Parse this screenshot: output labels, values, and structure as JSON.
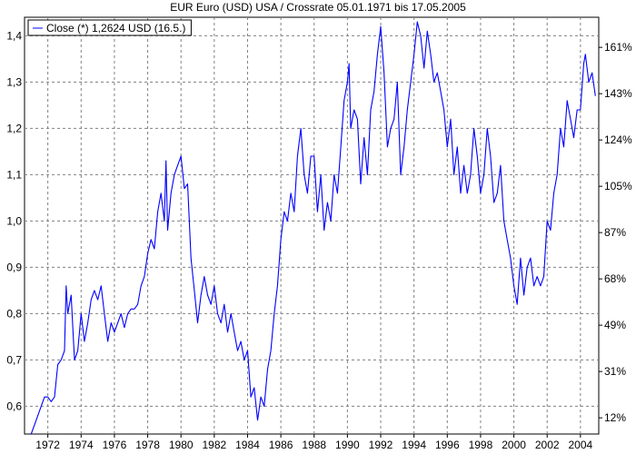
{
  "chart_data": {
    "type": "line",
    "title": "EUR Euro (USD) USA / Crossrate 05.01.1971 bis 17.05.2005",
    "xlabel": "",
    "ylabel": "",
    "xlim": [
      1970.6,
      2005.1
    ],
    "ylim": [
      0.54,
      1.44
    ],
    "x_ticks": [
      1972,
      1974,
      1976,
      1978,
      1980,
      1982,
      1984,
      1986,
      1988,
      1990,
      1992,
      1994,
      1996,
      1998,
      2000,
      2002,
      2004
    ],
    "y_ticks": [
      0.6,
      0.7,
      0.8,
      0.9,
      1.0,
      1.1,
      1.2,
      1.3,
      1.4
    ],
    "y_tick_labels": [
      "0,6",
      "0,7",
      "0,8",
      "0,9",
      "1,0",
      "1,1",
      "1,2",
      "1,3",
      "1,4"
    ],
    "right_ticks": [
      {
        "y": 0.575,
        "label": "12%"
      },
      {
        "y": 0.675,
        "label": "31%"
      },
      {
        "y": 0.775,
        "label": "49%"
      },
      {
        "y": 0.875,
        "label": "68%"
      },
      {
        "y": 0.975,
        "label": "87%"
      },
      {
        "y": 1.075,
        "label": "105%"
      },
      {
        "y": 1.175,
        "label": "124%"
      },
      {
        "y": 1.275,
        "label": "143%"
      },
      {
        "y": 1.375,
        "label": "161%"
      }
    ],
    "grid": true,
    "legend_position": "top-left",
    "series": [
      {
        "name": "Close (*) 1,2624 USD (16.5.)",
        "color": "#0000ff",
        "points": [
          [
            1971.0,
            0.54
          ],
          [
            1971.2,
            0.56
          ],
          [
            1971.4,
            0.58
          ],
          [
            1971.6,
            0.6
          ],
          [
            1971.8,
            0.62
          ],
          [
            1972.0,
            0.62
          ],
          [
            1972.2,
            0.61
          ],
          [
            1972.4,
            0.62
          ],
          [
            1972.6,
            0.69
          ],
          [
            1972.8,
            0.7
          ],
          [
            1973.0,
            0.72
          ],
          [
            1973.1,
            0.86
          ],
          [
            1973.2,
            0.8
          ],
          [
            1973.4,
            0.84
          ],
          [
            1973.6,
            0.7
          ],
          [
            1973.8,
            0.72
          ],
          [
            1974.0,
            0.8
          ],
          [
            1974.2,
            0.74
          ],
          [
            1974.4,
            0.78
          ],
          [
            1974.6,
            0.83
          ],
          [
            1974.8,
            0.85
          ],
          [
            1975.0,
            0.83
          ],
          [
            1975.2,
            0.86
          ],
          [
            1975.4,
            0.8
          ],
          [
            1975.6,
            0.74
          ],
          [
            1975.8,
            0.78
          ],
          [
            1976.0,
            0.76
          ],
          [
            1976.2,
            0.78
          ],
          [
            1976.4,
            0.8
          ],
          [
            1976.6,
            0.77
          ],
          [
            1976.8,
            0.8
          ],
          [
            1977.0,
            0.81
          ],
          [
            1977.2,
            0.81
          ],
          [
            1977.4,
            0.82
          ],
          [
            1977.6,
            0.86
          ],
          [
            1977.8,
            0.88
          ],
          [
            1978.0,
            0.93
          ],
          [
            1978.2,
            0.96
          ],
          [
            1978.4,
            0.94
          ],
          [
            1978.6,
            1.02
          ],
          [
            1978.8,
            1.06
          ],
          [
            1979.0,
            1.0
          ],
          [
            1979.1,
            1.13
          ],
          [
            1979.2,
            0.98
          ],
          [
            1979.4,
            1.06
          ],
          [
            1979.6,
            1.1
          ],
          [
            1979.8,
            1.12
          ],
          [
            1980.0,
            1.14
          ],
          [
            1980.2,
            1.07
          ],
          [
            1980.4,
            1.08
          ],
          [
            1980.6,
            0.92
          ],
          [
            1980.8,
            0.85
          ],
          [
            1981.0,
            0.78
          ],
          [
            1981.2,
            0.84
          ],
          [
            1981.4,
            0.88
          ],
          [
            1981.6,
            0.84
          ],
          [
            1981.8,
            0.82
          ],
          [
            1982.0,
            0.86
          ],
          [
            1982.2,
            0.8
          ],
          [
            1982.4,
            0.78
          ],
          [
            1982.6,
            0.82
          ],
          [
            1982.8,
            0.76
          ],
          [
            1983.0,
            0.8
          ],
          [
            1983.2,
            0.76
          ],
          [
            1983.4,
            0.72
          ],
          [
            1983.6,
            0.74
          ],
          [
            1983.8,
            0.7
          ],
          [
            1984.0,
            0.72
          ],
          [
            1984.2,
            0.62
          ],
          [
            1984.4,
            0.64
          ],
          [
            1984.6,
            0.57
          ],
          [
            1984.8,
            0.62
          ],
          [
            1985.0,
            0.6
          ],
          [
            1985.2,
            0.68
          ],
          [
            1985.4,
            0.72
          ],
          [
            1985.6,
            0.8
          ],
          [
            1985.8,
            0.86
          ],
          [
            1986.0,
            0.96
          ],
          [
            1986.2,
            1.02
          ],
          [
            1986.4,
            1.0
          ],
          [
            1986.6,
            1.06
          ],
          [
            1986.8,
            1.02
          ],
          [
            1987.0,
            1.14
          ],
          [
            1987.2,
            1.2
          ],
          [
            1987.4,
            1.1
          ],
          [
            1987.6,
            1.06
          ],
          [
            1987.8,
            1.14
          ],
          [
            1988.0,
            1.14
          ],
          [
            1988.2,
            1.02
          ],
          [
            1988.4,
            1.1
          ],
          [
            1988.6,
            0.98
          ],
          [
            1988.8,
            1.04
          ],
          [
            1989.0,
            1.0
          ],
          [
            1989.2,
            1.1
          ],
          [
            1989.4,
            1.06
          ],
          [
            1989.6,
            1.16
          ],
          [
            1989.8,
            1.26
          ],
          [
            1990.0,
            1.3
          ],
          [
            1990.1,
            1.34
          ],
          [
            1990.2,
            1.2
          ],
          [
            1990.4,
            1.24
          ],
          [
            1990.6,
            1.22
          ],
          [
            1990.8,
            1.08
          ],
          [
            1991.0,
            1.18
          ],
          [
            1991.2,
            1.1
          ],
          [
            1991.4,
            1.24
          ],
          [
            1991.6,
            1.28
          ],
          [
            1991.8,
            1.36
          ],
          [
            1992.0,
            1.42
          ],
          [
            1992.2,
            1.32
          ],
          [
            1992.4,
            1.16
          ],
          [
            1992.6,
            1.2
          ],
          [
            1992.8,
            1.22
          ],
          [
            1993.0,
            1.3
          ],
          [
            1993.2,
            1.1
          ],
          [
            1993.4,
            1.16
          ],
          [
            1993.6,
            1.24
          ],
          [
            1993.8,
            1.3
          ],
          [
            1994.0,
            1.36
          ],
          [
            1994.2,
            1.43
          ],
          [
            1994.4,
            1.4
          ],
          [
            1994.6,
            1.33
          ],
          [
            1994.8,
            1.41
          ],
          [
            1995.0,
            1.36
          ],
          [
            1995.2,
            1.3
          ],
          [
            1995.4,
            1.32
          ],
          [
            1995.6,
            1.28
          ],
          [
            1995.8,
            1.24
          ],
          [
            1996.0,
            1.16
          ],
          [
            1996.2,
            1.22
          ],
          [
            1996.4,
            1.1
          ],
          [
            1996.6,
            1.16
          ],
          [
            1996.8,
            1.06
          ],
          [
            1997.0,
            1.12
          ],
          [
            1997.2,
            1.06
          ],
          [
            1997.4,
            1.1
          ],
          [
            1997.6,
            1.2
          ],
          [
            1997.8,
            1.14
          ],
          [
            1998.0,
            1.06
          ],
          [
            1998.2,
            1.1
          ],
          [
            1998.4,
            1.2
          ],
          [
            1998.6,
            1.14
          ],
          [
            1998.8,
            1.04
          ],
          [
            1999.0,
            1.06
          ],
          [
            1999.2,
            1.12
          ],
          [
            1999.4,
            1.0
          ],
          [
            1999.6,
            0.96
          ],
          [
            1999.8,
            0.92
          ],
          [
            2000.0,
            0.86
          ],
          [
            2000.2,
            0.82
          ],
          [
            2000.4,
            0.92
          ],
          [
            2000.6,
            0.84
          ],
          [
            2000.8,
            0.9
          ],
          [
            2001.0,
            0.92
          ],
          [
            2001.2,
            0.86
          ],
          [
            2001.4,
            0.88
          ],
          [
            2001.6,
            0.86
          ],
          [
            2001.8,
            0.88
          ],
          [
            2002.0,
            1.0
          ],
          [
            2002.2,
            0.98
          ],
          [
            2002.4,
            1.06
          ],
          [
            2002.6,
            1.1
          ],
          [
            2002.8,
            1.2
          ],
          [
            2003.0,
            1.16
          ],
          [
            2003.2,
            1.26
          ],
          [
            2003.4,
            1.22
          ],
          [
            2003.6,
            1.18
          ],
          [
            2003.8,
            1.24
          ],
          [
            2004.0,
            1.24
          ],
          [
            2004.2,
            1.34
          ],
          [
            2004.3,
            1.36
          ],
          [
            2004.5,
            1.3
          ],
          [
            2004.7,
            1.32
          ],
          [
            2004.9,
            1.27
          ]
        ]
      }
    ]
  }
}
